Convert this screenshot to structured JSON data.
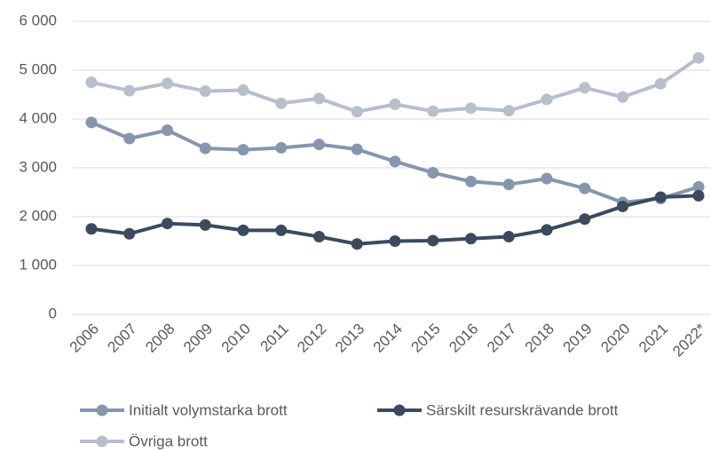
{
  "chart_data": {
    "type": "line",
    "categories": [
      "2006",
      "2007",
      "2008",
      "2009",
      "2010",
      "2011",
      "2012",
      "2013",
      "2014",
      "2015",
      "2016",
      "2017",
      "2018",
      "2019",
      "2020",
      "2021",
      "2022*"
    ],
    "series": [
      {
        "name": "Initialt volymstarka brott",
        "color": "#8596ad",
        "values": [
          3930,
          3600,
          3770,
          3400,
          3370,
          3410,
          3480,
          3380,
          3130,
          2900,
          2720,
          2660,
          2780,
          2580,
          2290,
          2370,
          2610
        ]
      },
      {
        "name": "Särskilt resurskrävande brott",
        "color": "#3c4a5e",
        "values": [
          1750,
          1650,
          1860,
          1830,
          1720,
          1720,
          1590,
          1440,
          1500,
          1510,
          1550,
          1590,
          1730,
          1950,
          2210,
          2400,
          2430
        ]
      },
      {
        "name": "Övriga brott",
        "color": "#b7bfcc",
        "values": [
          4750,
          4580,
          4730,
          4570,
          4590,
          4320,
          4420,
          4150,
          4300,
          4160,
          4220,
          4170,
          4400,
          4640,
          4450,
          4720,
          5250
        ]
      }
    ],
    "ylim": [
      0,
      6000
    ],
    "yticks": [
      0,
      {
        "value": 1000,
        "label": "1 000"
      },
      {
        "value": 2000,
        "label": "2 000"
      },
      {
        "value": 3000,
        "label": "3 000"
      },
      {
        "value": 4000,
        "label": "4 000"
      },
      {
        "value": 5000,
        "label": "5 000"
      },
      {
        "value": 6000,
        "label": "6 000"
      }
    ],
    "grid": true
  }
}
